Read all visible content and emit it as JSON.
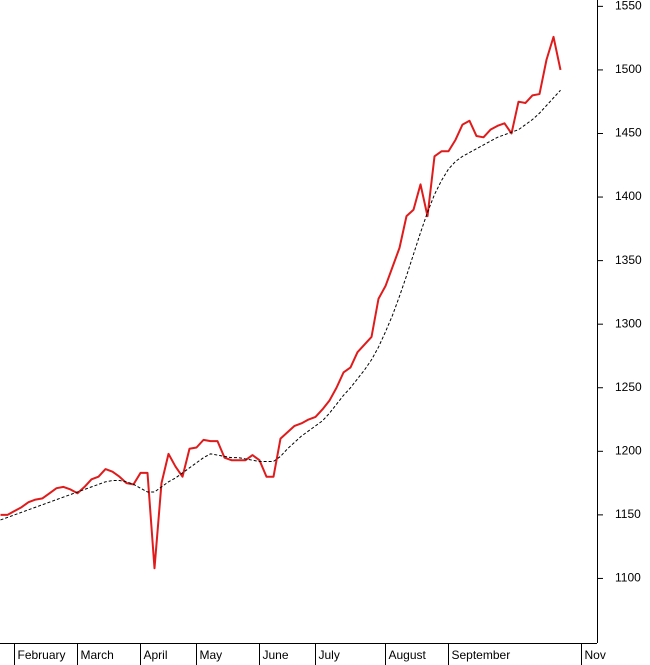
{
  "chart_data": {
    "type": "line",
    "categories": [
      null,
      null,
      "February",
      null,
      null,
      null,
      null,
      null,
      null,
      null,
      null,
      "March",
      null,
      null,
      null,
      null,
      null,
      null,
      null,
      null,
      "April",
      null,
      null,
      null,
      null,
      null,
      null,
      null,
      "May",
      null,
      null,
      null,
      null,
      null,
      null,
      null,
      null,
      "June",
      null,
      null,
      null,
      null,
      null,
      null,
      null,
      "July",
      null,
      null,
      null,
      null,
      null,
      null,
      null,
      null,
      null,
      "August",
      null,
      null,
      null,
      null,
      null,
      null,
      null,
      null,
      "September",
      null,
      null,
      null,
      null,
      null,
      null,
      null,
      null,
      null,
      null,
      null,
      null,
      null,
      null,
      null,
      null,
      null,
      null,
      "Nov"
    ],
    "series": [
      {
        "color": "#e01b1b",
        "style": "solid",
        "values": [
          1150,
          1150,
          1153,
          1156,
          1160,
          1162,
          1163,
          1167,
          1171,
          1172,
          1170,
          1167,
          1172,
          1178,
          1180,
          1186,
          1184,
          1180,
          1175,
          1174,
          1183,
          1183,
          1108,
          1175,
          1198,
          1188,
          1180,
          1202,
          1203,
          1209,
          1208,
          1208,
          1195,
          1193,
          1193,
          1193,
          1197,
          1193,
          1180,
          1180,
          1210,
          1215,
          1220,
          1222,
          1225,
          1227,
          1233,
          1240,
          1250,
          1262,
          1266,
          1278,
          1284,
          1290,
          1320,
          1330,
          1345,
          1360,
          1385,
          1390,
          1410,
          1385,
          1432,
          1436,
          1436,
          1445,
          1457,
          1460,
          1448,
          1447,
          1453,
          1456,
          1458,
          1450,
          1475,
          1474,
          1480,
          1481,
          1508,
          1526,
          1500,
          null,
          null,
          null
        ]
      },
      {
        "color": "#000000",
        "style": "dotted",
        "values": [
          1146,
          1148,
          1150,
          1152,
          1154,
          1156,
          1158,
          1160,
          1162,
          1164,
          1166,
          1168,
          1170,
          1172,
          1174,
          1176,
          1177,
          1177,
          1176,
          1174,
          1171,
          1168,
          1168,
          1172,
          1176,
          1179,
          1183,
          1187,
          1191,
          1195,
          1198,
          1197,
          1196,
          1195,
          1195,
          1194,
          1193,
          1192,
          1192,
          1192,
          1196,
          1202,
          1207,
          1212,
          1216,
          1220,
          1224,
          1230,
          1237,
          1244,
          1250,
          1257,
          1264,
          1272,
          1282,
          1294,
          1307,
          1322,
          1338,
          1355,
          1372,
          1388,
          1402,
          1413,
          1422,
          1428,
          1432,
          1435,
          1438,
          1441,
          1444,
          1447,
          1449,
          1451,
          1453,
          1457,
          1461,
          1466,
          1472,
          1478,
          1484,
          null,
          null,
          null
        ]
      }
    ],
    "ylim": [
      1050,
      1555
    ],
    "yticks": [
      1100,
      1150,
      1200,
      1250,
      1300,
      1350,
      1400,
      1450,
      1500,
      1550
    ],
    "y_axis_side": "right"
  }
}
